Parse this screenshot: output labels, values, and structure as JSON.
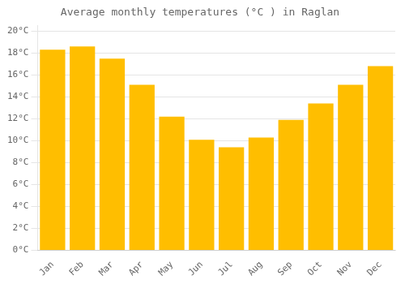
{
  "chart_data": {
    "type": "bar",
    "title": "Average monthly temperatures (°C ) in Raglan",
    "categories": [
      "Jan",
      "Feb",
      "Mar",
      "Apr",
      "May",
      "Jun",
      "Jul",
      "Aug",
      "Sep",
      "Oct",
      "Nov",
      "Dec"
    ],
    "values": [
      18.3,
      18.6,
      17.5,
      15.1,
      12.2,
      10.1,
      9.4,
      10.3,
      11.9,
      13.4,
      15.1,
      16.8
    ],
    "color": "#FFBE00",
    "ylim": [
      0,
      20.5
    ],
    "yticks": [
      {
        "value": 0,
        "label": "0°C"
      },
      {
        "value": 2,
        "label": "2°C"
      },
      {
        "value": 4,
        "label": "4°C"
      },
      {
        "value": 6,
        "label": "6°C"
      },
      {
        "value": 8,
        "label": "8°C"
      },
      {
        "value": 10,
        "label": "10°C"
      },
      {
        "value": 12,
        "label": "12°C"
      },
      {
        "value": 14,
        "label": "14°C"
      },
      {
        "value": 16,
        "label": "16°C"
      },
      {
        "value": 18,
        "label": "18°C"
      },
      {
        "value": 20,
        "label": "20°C"
      }
    ],
    "grid": true
  }
}
